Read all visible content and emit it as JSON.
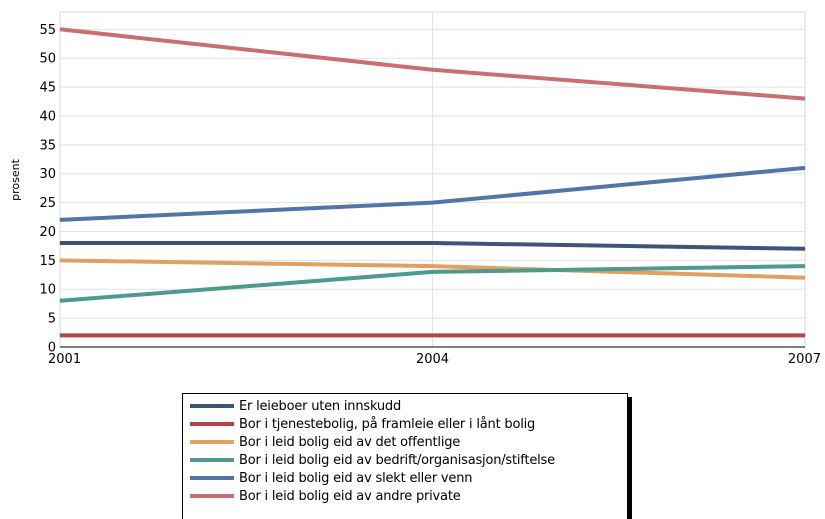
{
  "chart_data": {
    "type": "line",
    "title": "",
    "xlabel": "",
    "ylabel": "prosent",
    "x": [
      2001,
      2004,
      2007
    ],
    "x_ticks": [
      "2001",
      "2004",
      "2007"
    ],
    "ylim": [
      0,
      58
    ],
    "y_ticks": [
      "0",
      "5",
      "10",
      "15",
      "20",
      "25",
      "30",
      "35",
      "40",
      "45",
      "50",
      "55"
    ],
    "grid": true,
    "legend_position": "bottom",
    "series": [
      {
        "name": "Er leieboer uten innskudd",
        "color": "#3c5478",
        "values": [
          18,
          18,
          17
        ]
      },
      {
        "name": "Bor i tjenestebolig, på framleie eller i lånt bolig",
        "color": "#b24646",
        "values": [
          2,
          2,
          2
        ]
      },
      {
        "name": "Bor i leid bolig eid av det offentlige",
        "color": "#e0a060",
        "values": [
          15,
          14,
          12
        ]
      },
      {
        "name": "Bor i leid bolig eid av bedrift/organisasjon/stiftelse",
        "color": "#4e9a8e",
        "values": [
          8,
          13,
          14
        ]
      },
      {
        "name": "Bor i leid bolig eid av slekt eller venn",
        "color": "#5275a8",
        "values": [
          22,
          25,
          31
        ]
      },
      {
        "name": "Bor i leid bolig eid av andre private",
        "color": "#c96e72",
        "values": [
          55,
          48,
          43
        ]
      }
    ]
  }
}
